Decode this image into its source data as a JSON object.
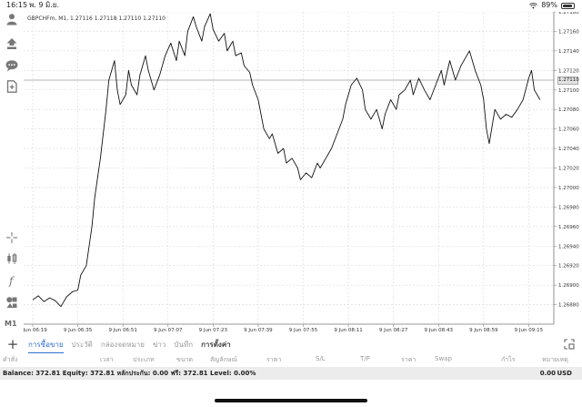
{
  "status_bar": {
    "time": "16:15",
    "date": "พ. 9 มิ.ย.",
    "battery": "89%",
    "battery_level": 0.89
  },
  "chart": {
    "header": "GBPCHFm, M1, 1.27116 1.27118 1.27110 1.27110",
    "timeframe": "M1",
    "current_price": "1.27110"
  },
  "chart_data": {
    "type": "line",
    "symbol": "GBPCHFm",
    "ylim": [
      1.2686,
      1.2718
    ],
    "y_ticks": [
      "1.27180",
      "1.27160",
      "1.27140",
      "1.27120",
      "1.27100",
      "1.27080",
      "1.27060",
      "1.27040",
      "1.27020",
      "1.27000",
      "1.26980",
      "1.26960",
      "1.26940",
      "1.26920",
      "1.26900",
      "1.26880"
    ],
    "x_ticks": [
      "9 Jun 06:19",
      "9 Jun 06:35",
      "9 Jun 06:51",
      "9 Jun 07:07",
      "9 Jun 07:23",
      "9 Jun 07:39",
      "9 Jun 07:55",
      "9 Jun 08:11",
      "9 Jun 08:27",
      "9 Jun 08:43",
      "9 Jun 08:59",
      "9 Jun 09:15"
    ],
    "x_range_minutes": [
      0,
      182
    ],
    "grid": true,
    "series": [
      {
        "values": [
          [
            0,
            1.26885
          ],
          [
            2,
            1.26889
          ],
          [
            4,
            1.26883
          ],
          [
            6,
            1.26887
          ],
          [
            8,
            1.26884
          ],
          [
            10,
            1.26878
          ],
          [
            12,
            1.26888
          ],
          [
            14,
            1.26893
          ],
          [
            16,
            1.26895
          ],
          [
            17,
            1.2691
          ],
          [
            19,
            1.2692
          ],
          [
            21,
            1.2696
          ],
          [
            22,
            1.2699
          ],
          [
            24,
            1.2703
          ],
          [
            26,
            1.2708
          ],
          [
            27,
            1.2711
          ],
          [
            29,
            1.2713
          ],
          [
            30,
            1.271
          ],
          [
            31,
            1.27085
          ],
          [
            33,
            1.27095
          ],
          [
            34,
            1.2712
          ],
          [
            35,
            1.27105
          ],
          [
            37,
            1.27095
          ],
          [
            38,
            1.27115
          ],
          [
            40,
            1.27135
          ],
          [
            41,
            1.2712
          ],
          [
            43,
            1.271
          ],
          [
            45,
            1.27115
          ],
          [
            47,
            1.27135
          ],
          [
            49,
            1.27148
          ],
          [
            51,
            1.2713
          ],
          [
            52,
            1.2715
          ],
          [
            54,
            1.27135
          ],
          [
            55,
            1.2716
          ],
          [
            57,
            1.27175
          ],
          [
            58,
            1.27165
          ],
          [
            60,
            1.2715
          ],
          [
            61,
            1.27165
          ],
          [
            63,
            1.27178
          ],
          [
            64,
            1.27162
          ],
          [
            66,
            1.2715
          ],
          [
            68,
            1.27158
          ],
          [
            69,
            1.2714
          ],
          [
            71,
            1.2715
          ],
          [
            72,
            1.27135
          ],
          [
            74,
            1.27138
          ],
          [
            75,
            1.27125
          ],
          [
            77,
            1.27118
          ],
          [
            78,
            1.27105
          ],
          [
            80,
            1.2709
          ],
          [
            82,
            1.2706
          ],
          [
            84,
            1.2705
          ],
          [
            85,
            1.27055
          ],
          [
            87,
            1.27035
          ],
          [
            89,
            1.2704
          ],
          [
            90,
            1.27025
          ],
          [
            92,
            1.2703
          ],
          [
            94,
            1.2702
          ],
          [
            95,
            1.27008
          ],
          [
            97,
            1.27015
          ],
          [
            99,
            1.2701
          ],
          [
            101,
            1.27025
          ],
          [
            102,
            1.2702
          ],
          [
            104,
            1.2703
          ],
          [
            106,
            1.2704
          ],
          [
            108,
            1.27055
          ],
          [
            110,
            1.2707
          ],
          [
            111,
            1.27085
          ],
          [
            113,
            1.27105
          ],
          [
            115,
            1.27112
          ],
          [
            117,
            1.271
          ],
          [
            118,
            1.2708
          ],
          [
            120,
            1.2707
          ],
          [
            122,
            1.2708
          ],
          [
            124,
            1.2706
          ],
          [
            125,
            1.27075
          ],
          [
            127,
            1.2709
          ],
          [
            129,
            1.2708
          ],
          [
            130,
            1.27095
          ],
          [
            132,
            1.271
          ],
          [
            134,
            1.2711
          ],
          [
            135,
            1.27095
          ],
          [
            137,
            1.27112
          ],
          [
            139,
            1.271
          ],
          [
            141,
            1.2709
          ],
          [
            143,
            1.27105
          ],
          [
            145,
            1.2712
          ],
          [
            146,
            1.27105
          ],
          [
            148,
            1.2713
          ],
          [
            150,
            1.2711
          ],
          [
            152,
            1.27125
          ],
          [
            154,
            1.27135
          ],
          [
            155,
            1.2714
          ],
          [
            157,
            1.2712
          ],
          [
            159,
            1.27105
          ],
          [
            160,
            1.2709
          ],
          [
            161,
            1.2706
          ],
          [
            162,
            1.27045
          ],
          [
            164,
            1.2708
          ],
          [
            166,
            1.2707
          ],
          [
            168,
            1.27075
          ],
          [
            170,
            1.27072
          ],
          [
            172,
            1.2708
          ],
          [
            174,
            1.2709
          ],
          [
            176,
            1.27112
          ],
          [
            177,
            1.2712
          ],
          [
            178,
            1.271
          ],
          [
            180,
            1.2709
          ]
        ]
      }
    ]
  },
  "left_toolbar": {
    "timeframe_label": "M1",
    "icons": [
      "person-icon",
      "open-order-icon",
      "chat-icon",
      "document-icon",
      "crosshair-icon",
      "candlestick-icon",
      "function-icon",
      "objects-icon"
    ]
  },
  "bottom_toolbar": {
    "tabs": [
      "การซื้อขาย",
      "ประวัติ",
      "กล่องจดหมาย",
      "ข่าว",
      "บันทึก",
      "การตั้งค่า"
    ]
  },
  "table_header": {
    "columns": [
      "คำสั่ง",
      "เวลา",
      "ประเภท",
      "ขนาด",
      "สัญลักษณ์",
      "ราคา",
      "S/L",
      "T/P",
      "ราคา",
      "Swap",
      "กำไร",
      "หมายเหตุ"
    ]
  },
  "balance_bar": {
    "text": "Balance: 372.81  Equity: 372.81  หลักประกัน: 0.00  ฟรี: 372.81  Level: 0.00%",
    "profit": "0.00",
    "currency": "USD"
  }
}
